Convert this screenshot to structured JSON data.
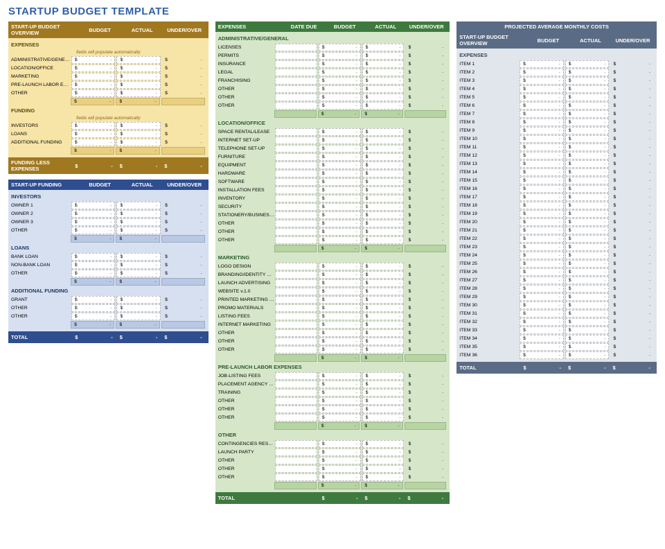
{
  "title": {
    "text": "STARTUP BUDGET TEMPLATE",
    "color": "#2f5fa8"
  },
  "headers": {
    "budget": "BUDGET",
    "actual": "ACTUAL",
    "underover": "UNDER/OVER",
    "dateDue": "DATE DUE",
    "expenses": "EXPENSES"
  },
  "money": {
    "prefix": "$",
    "dash": "-"
  },
  "note_auto": "fields will populate automatically",
  "gold": {
    "header": "START-UP BUDGET OVERVIEW",
    "sections": [
      {
        "title": "EXPENSES",
        "note": true,
        "rows": [
          "ADMINISTRATIVE/GENERAL",
          "LOCATION/OFFICE",
          "MARKETING",
          "PRE-LAUNCH LABOR EXPENSES",
          "OTHER"
        ],
        "subtotal": true
      },
      {
        "title": "FUNDING",
        "note": true,
        "rows": [
          "INVESTORS",
          "LOANS",
          "ADDITIONAL FUNDING"
        ],
        "subtotal": true
      }
    ],
    "total": "FUNDING LESS EXPENSES"
  },
  "blue": {
    "header": "START-UP FUNDING",
    "sections": [
      {
        "title": "INVESTORS",
        "rows": [
          "OWNER 1",
          "OWNER 2",
          "OWNER 3",
          "OTHER"
        ],
        "subtotal": true
      },
      {
        "title": "LOANS",
        "rows": [
          "BANK LOAN",
          "NON-BANK LOAN",
          "OTHER"
        ],
        "subtotal": true
      },
      {
        "title": "ADDITIONAL FUNDING",
        "rows": [
          "GRANT",
          "OTHER",
          "OTHER"
        ],
        "subtotal": true
      }
    ],
    "total": "TOTAL"
  },
  "green": {
    "header": "EXPENSES",
    "sections": [
      {
        "title": "ADMINISTRATIVE/GENERAL",
        "rows": [
          "LICENSES",
          "PERMITS",
          "INSURANCE",
          "LEGAL",
          "FRANCHISING",
          "OTHER",
          "OTHER",
          "OTHER"
        ],
        "subtotal": true
      },
      {
        "title": "LOCATION/OFFICE",
        "rows": [
          "SPACE RENTAL/LEASE",
          "INTERNET SET-UP",
          "TELEPHONE SET-UP",
          "FURNITURE",
          "EQUIPMENT",
          "HARDWARE",
          "SOFTWARE",
          "INSTALLATION FEES",
          "INVENTORY",
          "SECURITY",
          "STATIONERY/BUSINESS CARDS",
          "OTHER",
          "OTHER",
          "OTHER"
        ],
        "subtotal": true
      },
      {
        "title": "MARKETING",
        "rows": [
          "LOGO DESIGN",
          "BRANDING/IDENTITY DEV.",
          "LAUNCH ADVERTISING",
          "WEBSITE v.1.0",
          "PRINTED MARKETING PIECES",
          "PROMO MATERIALS",
          "LISTING FEES",
          "INTERNET MARKETING",
          "OTHER",
          "OTHER",
          "OTHER"
        ],
        "subtotal": true
      },
      {
        "title": "PRE-LAUNCH LABOR EXPENSES",
        "rows": [
          "JOB-LISTING FEES",
          "PLACEMENT AGENCY FEES",
          "TRAINING",
          "OTHER",
          "OTHER",
          "OTHER"
        ],
        "subtotal": true
      },
      {
        "title": "OTHER",
        "rows": [
          "CONTINGENCIES RESERVE",
          "LAUNCH PARTY",
          "OTHER",
          "OTHER",
          "OTHER"
        ],
        "subtotal": true
      }
    ],
    "total": "TOTAL"
  },
  "slate": {
    "title": "PROJECTED AVERAGE MONTHLY COSTS",
    "header": "START-UP BUDGET OVERVIEW",
    "section_title": "EXPENSES",
    "items": [
      "ITEM 1",
      "ITEM 2",
      "ITEM 3",
      "ITEM 4",
      "ITEM 5",
      "ITEM 6",
      "ITEM 7",
      "ITEM 8",
      "ITEM 9",
      "ITEM 10",
      "ITEM 11",
      "ITEM 12",
      "ITEM 13",
      "ITEM 14",
      "ITEM 15",
      "ITEM 16",
      "ITEM 17",
      "ITEM 18",
      "ITEM 19",
      "ITEM 20",
      "ITEM 21",
      "ITEM 22",
      "ITEM 23",
      "ITEM 24",
      "ITEM 25",
      "ITEM 26",
      "ITEM 27",
      "ITEM 28",
      "ITEM 29",
      "ITEM 30",
      "ITEM 31",
      "ITEM 32",
      "ITEM 33",
      "ITEM 34",
      "ITEM 35",
      "ITEM 36"
    ],
    "total": "TOTAL"
  }
}
